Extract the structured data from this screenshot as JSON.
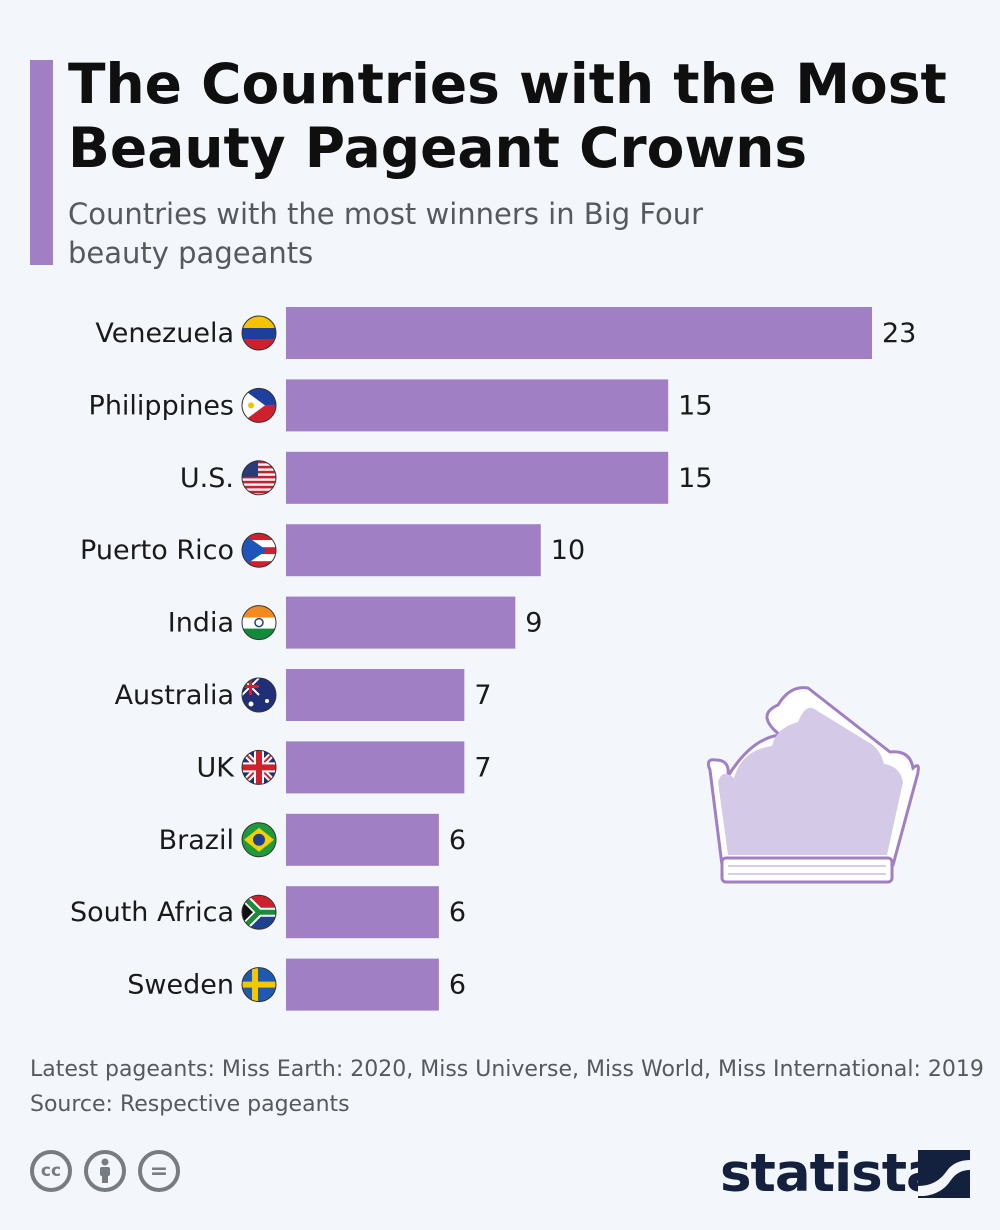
{
  "header": {
    "title": "The Countries with the Most Beauty Pageant Crowns",
    "subtitle": "Countries with the most winners in Big Four beauty pageants"
  },
  "colors": {
    "accent": "#a07fc5",
    "bar": "#a07fc5",
    "text": "#1a1a1a",
    "muted": "#555a60",
    "brand": "#13213e"
  },
  "chart_data": {
    "type": "bar",
    "orientation": "horizontal",
    "categories": [
      "Venezuela",
      "Philippines",
      "U.S.",
      "Puerto Rico",
      "India",
      "Australia",
      "UK",
      "Brazil",
      "South Africa",
      "Sweden"
    ],
    "values": [
      23,
      15,
      15,
      10,
      9,
      7,
      7,
      6,
      6,
      6
    ],
    "flag_icons": [
      "venezuela-flag-icon",
      "philippines-flag-icon",
      "us-flag-icon",
      "puerto-rico-flag-icon",
      "india-flag-icon",
      "australia-flag-icon",
      "uk-flag-icon",
      "brazil-flag-icon",
      "south-africa-flag-icon",
      "sweden-flag-icon"
    ],
    "xlim": [
      0,
      23
    ],
    "grid": false,
    "data_labels": true
  },
  "footer": {
    "note": "Latest pageants: Miss Earth: 2020, Miss Universe, Miss World, Miss International: 2019",
    "source": "Source: Respective pageants",
    "license_icons": [
      "cc-icon",
      "by-icon",
      "nd-icon"
    ],
    "cc_text": "cc",
    "nd_text": "=",
    "brand": "statista"
  },
  "decoration": {
    "icon": "crown-icon"
  }
}
